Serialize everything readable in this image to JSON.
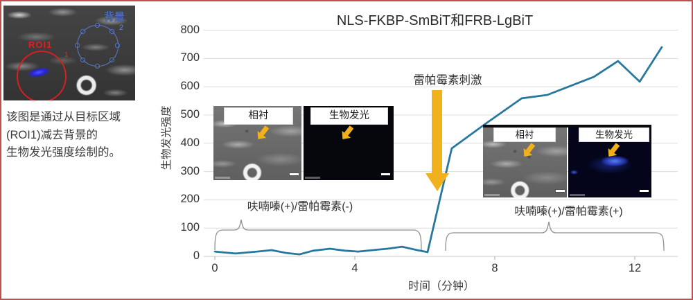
{
  "panel": {
    "roi_label": "ROI1",
    "roi_number": "1",
    "background_label": "背景",
    "background_number": "2",
    "caption_line1": "该图是通过从目标区域",
    "caption_line2": "(ROI1)减去背景的",
    "caption_line3": "生物发光强度绘制的。"
  },
  "chart": {
    "title": "NLS-FKBP-SmBiT和FRB-LgBiT",
    "y_axis_title": "生物发光强度",
    "x_axis_title": "时间（分钟）",
    "annotation": "雷帕霉素刺激",
    "condition_left": "呋喃嗪(+)/雷帕霉素(-)",
    "condition_right": "呋喃嗪(+)/雷帕霉素(+)",
    "inset_left": {
      "phase_label": "相衬",
      "biolum_label": "生物发光"
    },
    "inset_right": {
      "phase_label": "相衬",
      "biolum_label": "生物发光"
    }
  },
  "colors": {
    "line": "#27789e",
    "accent_yellow": "#f0b11d",
    "frame_red": "#c0504d",
    "roi_red": "#d42121",
    "background_blue": "#5d7ac8",
    "gridline": "#dcdcdc"
  },
  "chart_data": {
    "type": "line",
    "title": "NLS-FKBP-SmBiT和FRB-LgBiT",
    "xlabel": "时间（分钟）",
    "ylabel": "生物发光强度",
    "xlim": [
      0,
      13.2
    ],
    "ylim": [
      0,
      800
    ],
    "x_ticks": [
      0,
      4,
      8,
      12
    ],
    "y_ticks": [
      0,
      100,
      200,
      300,
      400,
      500,
      600,
      700,
      800
    ],
    "grid": true,
    "legend": "none",
    "annotations": [
      {
        "text": "雷帕霉素刺激",
        "x": 6.3,
        "y": 620,
        "marker": "yellow-down-arrow"
      },
      {
        "text": "呋喃嗪(+)/雷帕霉素(-)",
        "x_range": [
          0,
          5.9
        ],
        "style": "brace"
      },
      {
        "text": "呋喃嗪(+)/雷帕霉素(+)",
        "x_range": [
          6.6,
          12.8
        ],
        "style": "brace"
      }
    ],
    "series": [
      {
        "name": "ROI1减去背景",
        "points": [
          [
            0,
            17
          ],
          [
            0.59,
            10
          ],
          [
            1.21,
            17
          ],
          [
            1.62,
            22
          ],
          [
            2.04,
            12
          ],
          [
            2.42,
            7
          ],
          [
            2.81,
            20
          ],
          [
            3.29,
            27
          ],
          [
            3.72,
            20
          ],
          [
            4.1,
            17
          ],
          [
            4.51,
            22
          ],
          [
            4.93,
            27
          ],
          [
            5.35,
            34
          ],
          [
            5.78,
            22
          ],
          [
            6.08,
            15
          ],
          [
            6.77,
            382
          ],
          [
            7.78,
            473
          ],
          [
            8.77,
            559
          ],
          [
            9.5,
            571
          ],
          [
            10.83,
            635
          ],
          [
            11.52,
            691
          ],
          [
            12.14,
            618
          ],
          [
            12.77,
            740
          ]
        ]
      }
    ]
  }
}
